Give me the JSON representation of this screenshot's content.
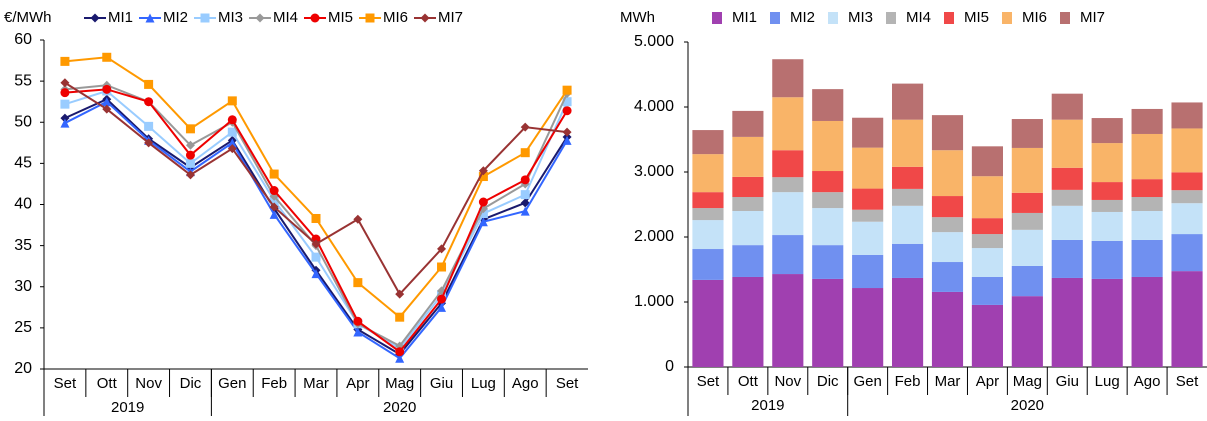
{
  "chart_data": [
    {
      "type": "line",
      "y_label": "€/MWh",
      "categories": [
        "Set",
        "Ott",
        "Nov",
        "Dic",
        "Gen",
        "Feb",
        "Mar",
        "Apr",
        "Mag",
        "Giu",
        "Lug",
        "Ago",
        "Set"
      ],
      "x_groups": [
        {
          "label": "2019",
          "count": 4
        },
        {
          "label": "2020",
          "count": 9
        }
      ],
      "ylim": [
        20,
        60
      ],
      "yticks": [
        20,
        25,
        30,
        35,
        40,
        45,
        50,
        55,
        60
      ],
      "series": [
        {
          "name": "MI1",
          "color": "#1a1a6e",
          "marker": "diamond",
          "values": [
            50.5,
            52.8,
            48,
            44.5,
            47.8,
            39.5,
            32,
            24.8,
            21.8,
            28,
            38.2,
            40.2,
            48.2
          ]
        },
        {
          "name": "MI2",
          "color": "#3366ff",
          "marker": "triangle",
          "values": [
            49.9,
            52.5,
            47.8,
            44,
            47.5,
            38.8,
            31.6,
            24.5,
            21.3,
            27.5,
            37.9,
            39.2,
            47.8
          ]
        },
        {
          "name": "MI3",
          "color": "#99ccff",
          "marker": "square",
          "values": [
            52.2,
            53.8,
            49.5,
            45,
            48.8,
            40.5,
            33.6,
            25.5,
            22.5,
            29,
            38.9,
            41.2,
            52.5
          ]
        },
        {
          "name": "MI4",
          "color": "#999999",
          "marker": "diamond",
          "values": [
            54,
            54.5,
            52.5,
            47.2,
            50,
            41,
            35,
            25.5,
            22.8,
            29.5,
            39.5,
            42.5,
            53.5
          ]
        },
        {
          "name": "MI5",
          "color": "#ee0000",
          "marker": "circle",
          "values": [
            53.6,
            54,
            52.5,
            46,
            50.3,
            41.7,
            35.8,
            25.8,
            22.1,
            28.5,
            40.3,
            43,
            51.4
          ]
        },
        {
          "name": "MI6",
          "color": "#ff9900",
          "marker": "square",
          "values": [
            57.4,
            57.9,
            54.6,
            49.2,
            52.6,
            43.7,
            38.3,
            30.5,
            26.3,
            32.4,
            43.4,
            46.3,
            53.9
          ]
        },
        {
          "name": "MI7",
          "color": "#993333",
          "marker": "diamond",
          "values": [
            54.8,
            51.6,
            47.5,
            43.6,
            46.8,
            39.7,
            35.2,
            38.2,
            29.1,
            34.6,
            44.1,
            49.4,
            48.8
          ]
        }
      ]
    },
    {
      "type": "stacked_bar",
      "y_label": "MWh",
      "categories": [
        "Set",
        "Ott",
        "Nov",
        "Dic",
        "Gen",
        "Feb",
        "Mar",
        "Apr",
        "Mag",
        "Giu",
        "Lug",
        "Ago",
        "Set"
      ],
      "x_groups": [
        {
          "label": "2019",
          "count": 4
        },
        {
          "label": "2020",
          "count": 9
        }
      ],
      "ylim": [
        0,
        5000
      ],
      "yticks": [
        0,
        {
          "value": 1000,
          "label": "1.000"
        },
        {
          "value": 2000,
          "label": "2.000"
        },
        {
          "value": 3000,
          "label": "3.000"
        },
        {
          "value": 4000,
          "label": "4.000"
        },
        {
          "value": 5000,
          "label": "5.000"
        }
      ],
      "series": [
        {
          "name": "MI1",
          "color": "#a040b0",
          "values": [
            1340,
            1385,
            1430,
            1355,
            1215,
            1370,
            1155,
            955,
            1090,
            1370,
            1355,
            1385,
            1475
          ]
        },
        {
          "name": "MI2",
          "color": "#7090f0",
          "values": [
            475,
            490,
            600,
            520,
            510,
            525,
            460,
            430,
            465,
            585,
            585,
            570,
            570
          ]
        },
        {
          "name": "MI3",
          "color": "#c4e2f8",
          "values": [
            445,
            525,
            660,
            570,
            510,
            585,
            460,
            445,
            555,
            525,
            445,
            445,
            475
          ]
        },
        {
          "name": "MI4",
          "color": "#b4b4b4",
          "values": [
            185,
            215,
            230,
            245,
            185,
            260,
            230,
            215,
            260,
            245,
            185,
            215,
            200
          ]
        },
        {
          "name": "MI5",
          "color": "#f04848",
          "values": [
            245,
            310,
            415,
            325,
            325,
            340,
            325,
            245,
            310,
            340,
            275,
            275,
            275
          ]
        },
        {
          "name": "MI6",
          "color": "#f9b468",
          "values": [
            585,
            615,
            815,
            770,
            630,
            725,
            705,
            645,
            690,
            740,
            600,
            695,
            675
          ]
        },
        {
          "name": "MI7",
          "color": "#b87070",
          "values": [
            370,
            400,
            585,
            490,
            460,
            555,
            540,
            460,
            445,
            400,
            385,
            385,
            400
          ]
        }
      ]
    }
  ]
}
